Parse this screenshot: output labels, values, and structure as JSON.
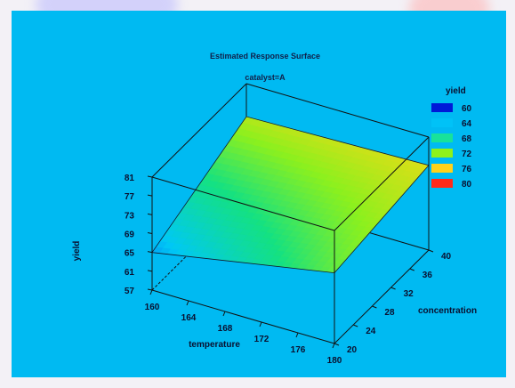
{
  "chart_data": {
    "type": "surface",
    "title": "Estimated Response Surface",
    "subtitle": "catalyst=A",
    "xlabel": "temperature",
    "ylabel": "concentration",
    "zlabel": "yield",
    "x_ticks": [
      160,
      164,
      168,
      172,
      176,
      180
    ],
    "y_ticks": [
      20,
      24,
      28,
      32,
      36,
      40
    ],
    "z_ticks": [
      57,
      61,
      65,
      69,
      73,
      77,
      81
    ],
    "xlim": [
      160,
      180
    ],
    "ylim": [
      20,
      40
    ],
    "zlim": [
      57,
      81
    ],
    "surface_corners": [
      {
        "temperature": 160,
        "concentration": 20,
        "yield": 65
      },
      {
        "temperature": 180,
        "concentration": 20,
        "yield": 72
      },
      {
        "temperature": 180,
        "concentration": 40,
        "yield": 75
      },
      {
        "temperature": 160,
        "concentration": 40,
        "yield": 74
      }
    ],
    "legend": {
      "title": "yield",
      "items": [
        {
          "label": "60",
          "color": "#0019d8"
        },
        {
          "label": "64",
          "color": "#00c2f7"
        },
        {
          "label": "68",
          "color": "#18e29a"
        },
        {
          "label": "72",
          "color": "#8ef21a"
        },
        {
          "label": "76",
          "color": "#ffd21a"
        },
        {
          "label": "80",
          "color": "#ff2a1a"
        }
      ]
    }
  }
}
